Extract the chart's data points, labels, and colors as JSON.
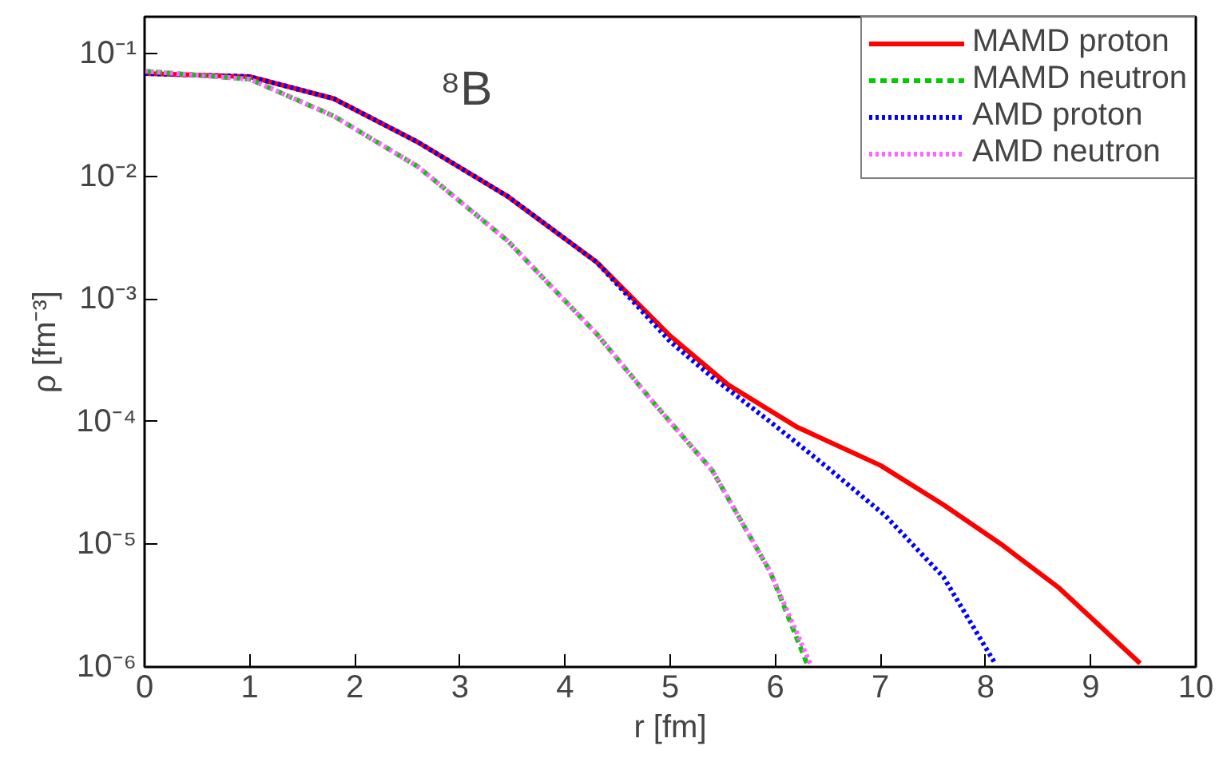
{
  "chart_data": {
    "type": "line",
    "xlabel": "r [fm]",
    "ylabel": "ρ [fm⁻³]",
    "log": "y",
    "grid": false,
    "legend": "top right",
    "xlim": [
      0,
      10
    ],
    "xticks": [
      0,
      1,
      2,
      3,
      4,
      5,
      6,
      7,
      8,
      9,
      10
    ],
    "ylim": [
      1e-06,
      0.2
    ],
    "yticks": [
      {
        "value": 1e-06,
        "label": "10⁻⁶"
      },
      {
        "value": 1e-05,
        "label": "10⁻⁵"
      },
      {
        "value": 0.0001,
        "label": "10⁻⁴"
      },
      {
        "value": 0.001,
        "label": "10⁻³"
      },
      {
        "value": 0.01,
        "label": "10⁻²"
      },
      {
        "value": 0.1,
        "label": "10⁻¹"
      }
    ],
    "annotations": [
      "⁸B"
    ],
    "series": [
      {
        "name": "MAMD proton",
        "color": "#ff0000",
        "line_style": "solid",
        "x": [
          0,
          1,
          1.8,
          2.6,
          3.45,
          4.3,
          5,
          5.55,
          6.2,
          7,
          7.6,
          8.15,
          8.7,
          9.47
        ],
        "values": [
          0.069,
          0.065,
          0.043,
          0.019,
          0.0069,
          0.002,
          0.0005,
          0.0002,
          9.1e-05,
          4.4e-05,
          2.1e-05,
          1e-05,
          4.4e-06,
          1.07e-06
        ]
      },
      {
        "name": "MAMD neutron",
        "color": "#00cc00",
        "line_style": "dashed",
        "x": [
          0,
          1,
          1.8,
          2.6,
          3.45,
          4.3,
          4.85,
          5.4,
          5.95,
          6.3
        ],
        "values": [
          0.072,
          0.062,
          0.031,
          0.012,
          0.003,
          0.00052,
          0.00014,
          4e-05,
          6e-06,
          1.07e-06
        ]
      },
      {
        "name": "AMD proton",
        "color": "#0000ff",
        "line_style": "dotted",
        "x": [
          0,
          1,
          1.8,
          2.6,
          3.45,
          4.3,
          5,
          5.4,
          5.95,
          6.5,
          7.05,
          7.6,
          8.09
        ],
        "values": [
          0.069,
          0.065,
          0.043,
          0.019,
          0.0069,
          0.002,
          0.00045,
          0.00023,
          0.0001,
          4.2e-05,
          1.7e-05,
          5.4e-06,
          1.07e-06
        ]
      },
      {
        "name": "AMD neutron",
        "color": "#ff66ff",
        "line_style": "dotted",
        "x": [
          0,
          1,
          1.8,
          2.6,
          3.45,
          4.3,
          4.85,
          5.4,
          5.95,
          6.33
        ],
        "values": [
          0.072,
          0.062,
          0.031,
          0.012,
          0.003,
          0.00052,
          0.00014,
          4e-05,
          6e-06,
          1.07e-06
        ]
      }
    ]
  }
}
